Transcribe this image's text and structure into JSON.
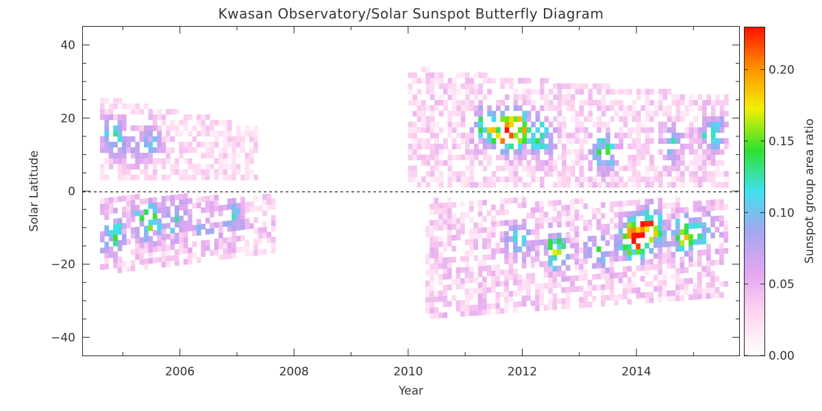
{
  "chart_data": {
    "type": "heatmap",
    "title": "Kwasan Observatory/Solar Sunspot Butterfly Diagram",
    "xlabel": "Year",
    "ylabel": "Solar Latitude",
    "colorbar_label": "Sunspot group area ratio",
    "xlim": [
      2004.3,
      2015.8
    ],
    "ylim": [
      -45,
      45
    ],
    "x_ticks": [
      2006,
      2008,
      2010,
      2012,
      2014
    ],
    "x_tick_labels": [
      "2006",
      "2008",
      "2010",
      "2012",
      "2014"
    ],
    "y_ticks": [
      -40,
      -20,
      0,
      20,
      40
    ],
    "y_tick_labels": [
      "−40",
      "−20",
      "0",
      "20",
      "40"
    ],
    "colorbar_range": [
      0,
      0.23
    ],
    "colorbar_ticks": [
      0.0,
      0.05,
      0.1,
      0.15,
      0.2
    ],
    "colorbar_tick_labels": [
      "0.00",
      "0.05",
      "0.10",
      "0.15",
      "0.20"
    ],
    "colorscale": [
      "#ffffff",
      "#ffd6f0",
      "#e3a8f0",
      "#a6a6f0",
      "#40e0f0",
      "#30e030",
      "#f0f000",
      "#ff9000",
      "#ff1000"
    ],
    "zero_line": "dashed",
    "regions": [
      {
        "hemisphere": "north",
        "x0": 2004.6,
        "x1": 2007.3,
        "lat0": 3,
        "lat1": 25,
        "level": 0.035,
        "peaks": [
          [
            2004.8,
            14,
            0.11
          ],
          [
            2005.5,
            13,
            0.06
          ],
          [
            2005.2,
            11,
            0.05
          ]
        ]
      },
      {
        "hemisphere": "south",
        "x0": 2004.6,
        "x1": 2007.6,
        "lat_min": -23,
        "lat_max": -2,
        "level": 0.045,
        "peaks": [
          [
            2004.8,
            -13,
            0.1
          ],
          [
            2005.4,
            -9,
            0.13
          ],
          [
            2005.9,
            -8,
            0.08
          ],
          [
            2006.4,
            -12,
            0.06
          ],
          [
            2006.9,
            -7,
            0.07
          ]
        ]
      },
      {
        "hemisphere": "north",
        "x0": 2010.0,
        "x1": 2015.6,
        "lat0": 1,
        "lat1": 33,
        "level": 0.04,
        "peaks": [
          [
            2011.3,
            17,
            0.11
          ],
          [
            2011.6,
            15,
            0.14
          ],
          [
            2011.85,
            16,
            0.21
          ],
          [
            2012.3,
            14,
            0.11
          ],
          [
            2013.4,
            10,
            0.12
          ],
          [
            2014.6,
            12,
            0.08
          ],
          [
            2015.3,
            15,
            0.11
          ]
        ]
      },
      {
        "hemisphere": "south",
        "x0": 2010.3,
        "x1": 2015.6,
        "lat_min": -35,
        "lat_max": -3,
        "level": 0.045,
        "peaks": [
          [
            2011.9,
            -14,
            0.09
          ],
          [
            2012.55,
            -17,
            0.14
          ],
          [
            2013.3,
            -17,
            0.11
          ],
          [
            2013.9,
            -14,
            0.2
          ],
          [
            2014.2,
            -11,
            0.18
          ],
          [
            2014.8,
            -13,
            0.14
          ],
          [
            2015.2,
            -12,
            0.08
          ]
        ]
      }
    ]
  }
}
